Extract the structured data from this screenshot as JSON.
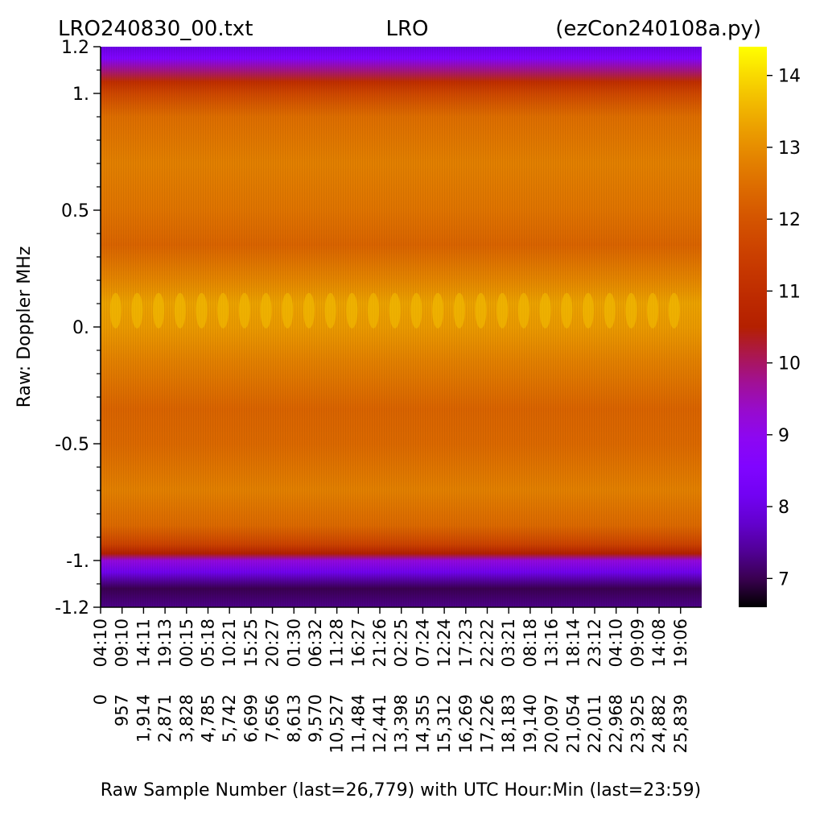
{
  "chart_data": {
    "type": "heatmap",
    "title_left": "LRO240830_00.txt",
    "title_center": "LRO",
    "title_right": "(ezCon240108a.py)",
    "xlabel": "Raw Sample Number (last=26,779) with UTC Hour:Min (last=23:59)",
    "ylabel": "Raw:  Doppler MHz",
    "ylim": [
      -1.2,
      1.2
    ],
    "y_ticks": [
      {
        "value": 1.2,
        "label": "1.2"
      },
      {
        "value": 1.0,
        "label": "1."
      },
      {
        "value": 0.5,
        "label": "0.5"
      },
      {
        "value": 0.0,
        "label": "0."
      },
      {
        "value": -0.5,
        "label": "-0.5"
      },
      {
        "value": -1.0,
        "label": "-1."
      },
      {
        "value": -1.2,
        "label": "-1.2"
      }
    ],
    "y_minor_ticks": [
      1.1,
      0.9,
      0.8,
      0.7,
      0.6,
      0.4,
      0.3,
      0.2,
      0.1,
      -0.1,
      -0.2,
      -0.3,
      -0.4,
      -0.6,
      -0.7,
      -0.8,
      -0.9,
      -1.1
    ],
    "x_last_sample": 26779,
    "x_ticks": [
      {
        "sample": 0,
        "label": "0",
        "time": "04:10"
      },
      {
        "sample": 957,
        "label": "957",
        "time": "09:10"
      },
      {
        "sample": 1914,
        "label": "1,914",
        "time": "14:11"
      },
      {
        "sample": 2871,
        "label": "2,871",
        "time": "19:13"
      },
      {
        "sample": 3828,
        "label": "3,828",
        "time": "00:15"
      },
      {
        "sample": 4785,
        "label": "4,785",
        "time": "05:18"
      },
      {
        "sample": 5742,
        "label": "5,742",
        "time": "10:21"
      },
      {
        "sample": 6699,
        "label": "6,699",
        "time": "15:25"
      },
      {
        "sample": 7656,
        "label": "7,656",
        "time": "20:27"
      },
      {
        "sample": 8613,
        "label": "8,613",
        "time": "01:30"
      },
      {
        "sample": 9570,
        "label": "9,570",
        "time": "06:32"
      },
      {
        "sample": 10527,
        "label": "10,527",
        "time": "11:28"
      },
      {
        "sample": 11484,
        "label": "11,484",
        "time": "16:27"
      },
      {
        "sample": 12441,
        "label": "12,441",
        "time": "21:26"
      },
      {
        "sample": 13398,
        "label": "13,398",
        "time": "02:25"
      },
      {
        "sample": 14355,
        "label": "14,355",
        "time": "07:24"
      },
      {
        "sample": 15312,
        "label": "15,312",
        "time": "12:24"
      },
      {
        "sample": 16269,
        "label": "16,269",
        "time": "17:23"
      },
      {
        "sample": 17226,
        "label": "17,226",
        "time": "22:22"
      },
      {
        "sample": 18183,
        "label": "18,183",
        "time": "03:21"
      },
      {
        "sample": 19140,
        "label": "19,140",
        "time": "08:18"
      },
      {
        "sample": 20097,
        "label": "20,097",
        "time": "13:16"
      },
      {
        "sample": 21054,
        "label": "21,054",
        "time": "18:14"
      },
      {
        "sample": 22011,
        "label": "22,011",
        "time": "23:12"
      },
      {
        "sample": 22968,
        "label": "22,968",
        "time": "04:10"
      },
      {
        "sample": 23925,
        "label": "23,925",
        "time": "09:09"
      },
      {
        "sample": 24882,
        "label": "24,882",
        "time": "14:08"
      },
      {
        "sample": 25839,
        "label": "25,839",
        "time": "19:06"
      }
    ],
    "colorbar": {
      "min": 6.6,
      "max": 14.4,
      "colormap": "gnuplot",
      "ticks": [
        7,
        8,
        9,
        10,
        11,
        12,
        13,
        14
      ]
    },
    "profile": [
      {
        "mhz": 1.2,
        "value": 8.0
      },
      {
        "mhz": 1.15,
        "value": 8.6
      },
      {
        "mhz": 1.1,
        "value": 9.8
      },
      {
        "mhz": 1.05,
        "value": 11.0
      },
      {
        "mhz": 1.0,
        "value": 11.7
      },
      {
        "mhz": 0.9,
        "value": 12.5
      },
      {
        "mhz": 0.7,
        "value": 12.8
      },
      {
        "mhz": 0.5,
        "value": 12.6
      },
      {
        "mhz": 0.35,
        "value": 12.3
      },
      {
        "mhz": 0.2,
        "value": 12.9
      },
      {
        "mhz": 0.1,
        "value": 13.3
      },
      {
        "mhz": 0.0,
        "value": 13.2
      },
      {
        "mhz": -0.15,
        "value": 12.8
      },
      {
        "mhz": -0.35,
        "value": 12.3
      },
      {
        "mhz": -0.5,
        "value": 12.4
      },
      {
        "mhz": -0.7,
        "value": 12.8
      },
      {
        "mhz": -0.85,
        "value": 12.4
      },
      {
        "mhz": -0.93,
        "value": 11.6
      },
      {
        "mhz": -0.97,
        "value": 10.5
      },
      {
        "mhz": -1.0,
        "value": 9.2
      },
      {
        "mhz": -1.05,
        "value": 8.1
      },
      {
        "mhz": -1.12,
        "value": 7.0
      },
      {
        "mhz": -1.2,
        "value": 7.3
      }
    ]
  }
}
